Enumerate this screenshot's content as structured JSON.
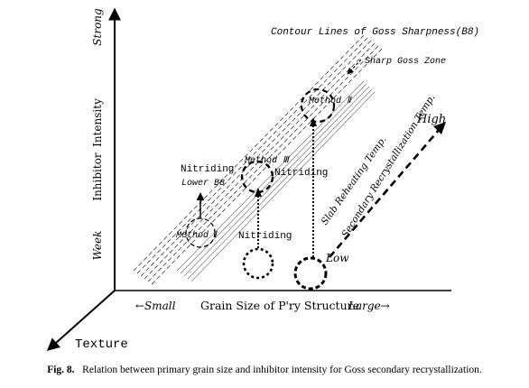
{
  "axes": {
    "y_strong": "Strong",
    "y_intensity": "Intensity",
    "y_inhibitor": "Inhibitor",
    "y_week": "Week",
    "x_small": "←Small",
    "x_title": "Grain Size of P'ry Structure",
    "x_large": "Large→",
    "z_texture": "Texture"
  },
  "labels": {
    "contour_title": "Contour Lines of Goss Sharpness(B8)",
    "sharp_zone": "Sharp Goss Zone",
    "method2": "Method Ⅱ",
    "method3": "Method Ⅲ",
    "method1": "Method Ⅰ",
    "nitriding_left": "Nitriding",
    "lower_b8": "Lower B8",
    "nitriding_mid": "Nitriding",
    "nitriding_bottom": "Nitriding",
    "slab_temp": "Slab Reheating Temp.",
    "sec_temp": "Secondary Recrystallization Temp.",
    "high": "High",
    "low": "Low"
  },
  "caption": {
    "fig": "Fig. 8.",
    "text": "Relation between primary grain size and inhibitor intensity for Goss secondary recrystallization."
  }
}
